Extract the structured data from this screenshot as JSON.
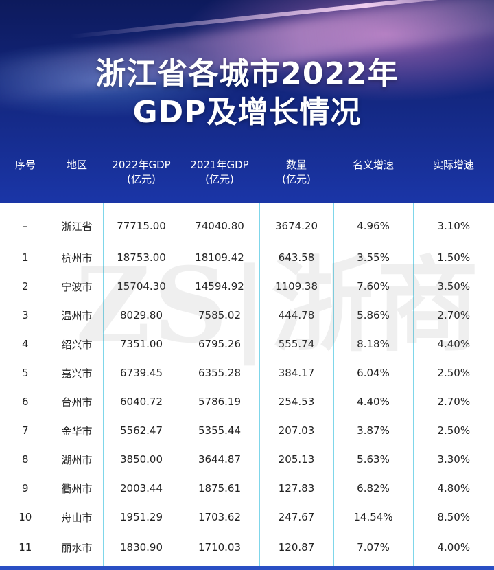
{
  "title": {
    "line1": "浙江省各城市2022年",
    "line2": "GDP及增长情况"
  },
  "table": {
    "headers": [
      {
        "l1": "序号",
        "l2": ""
      },
      {
        "l1": "地区",
        "l2": ""
      },
      {
        "l1": "2022年GDP",
        "l2": "(亿元)"
      },
      {
        "l1": "2021年GDP",
        "l2": "(亿元)"
      },
      {
        "l1": "数量",
        "l2": "(亿元)"
      },
      {
        "l1": "名义增速",
        "l2": ""
      },
      {
        "l1": "实际增速",
        "l2": ""
      }
    ],
    "rows": [
      [
        "–",
        "浙江省",
        "77715.00",
        "74040.80",
        "3674.20",
        "4.96%",
        "3.10%"
      ],
      [
        "1",
        "杭州市",
        "18753.00",
        "18109.42",
        "643.58",
        "3.55%",
        "1.50%"
      ],
      [
        "2",
        "宁波市",
        "15704.30",
        "14594.92",
        "1109.38",
        "7.60%",
        "3.50%"
      ],
      [
        "3",
        "温州市",
        "8029.80",
        "7585.02",
        "444.78",
        "5.86%",
        "2.70%"
      ],
      [
        "4",
        "绍兴市",
        "7351.00",
        "6795.26",
        "555.74",
        "8.18%",
        "4.40%"
      ],
      [
        "5",
        "嘉兴市",
        "6739.45",
        "6355.28",
        "384.17",
        "6.04%",
        "2.50%"
      ],
      [
        "6",
        "台州市",
        "6040.72",
        "5786.19",
        "254.53",
        "4.40%",
        "2.70%"
      ],
      [
        "7",
        "金华市",
        "5562.47",
        "5355.44",
        "207.03",
        "3.87%",
        "2.50%"
      ],
      [
        "8",
        "湖州市",
        "3850.00",
        "3644.87",
        "205.13",
        "5.63%",
        "3.30%"
      ],
      [
        "9",
        "衢州市",
        "2003.44",
        "1875.61",
        "127.83",
        "6.82%",
        "4.80%"
      ],
      [
        "10",
        "舟山市",
        "1951.29",
        "1703.62",
        "247.67",
        "14.54%",
        "8.50%"
      ],
      [
        "11",
        "丽水市",
        "1830.90",
        "1710.03",
        "120.87",
        "7.07%",
        "4.00%"
      ]
    ]
  },
  "watermark": "ZS|浙商",
  "colors": {
    "background": "#1f3fb4",
    "grid_line": "#7fd6ea",
    "header_text": "#ffffff"
  }
}
